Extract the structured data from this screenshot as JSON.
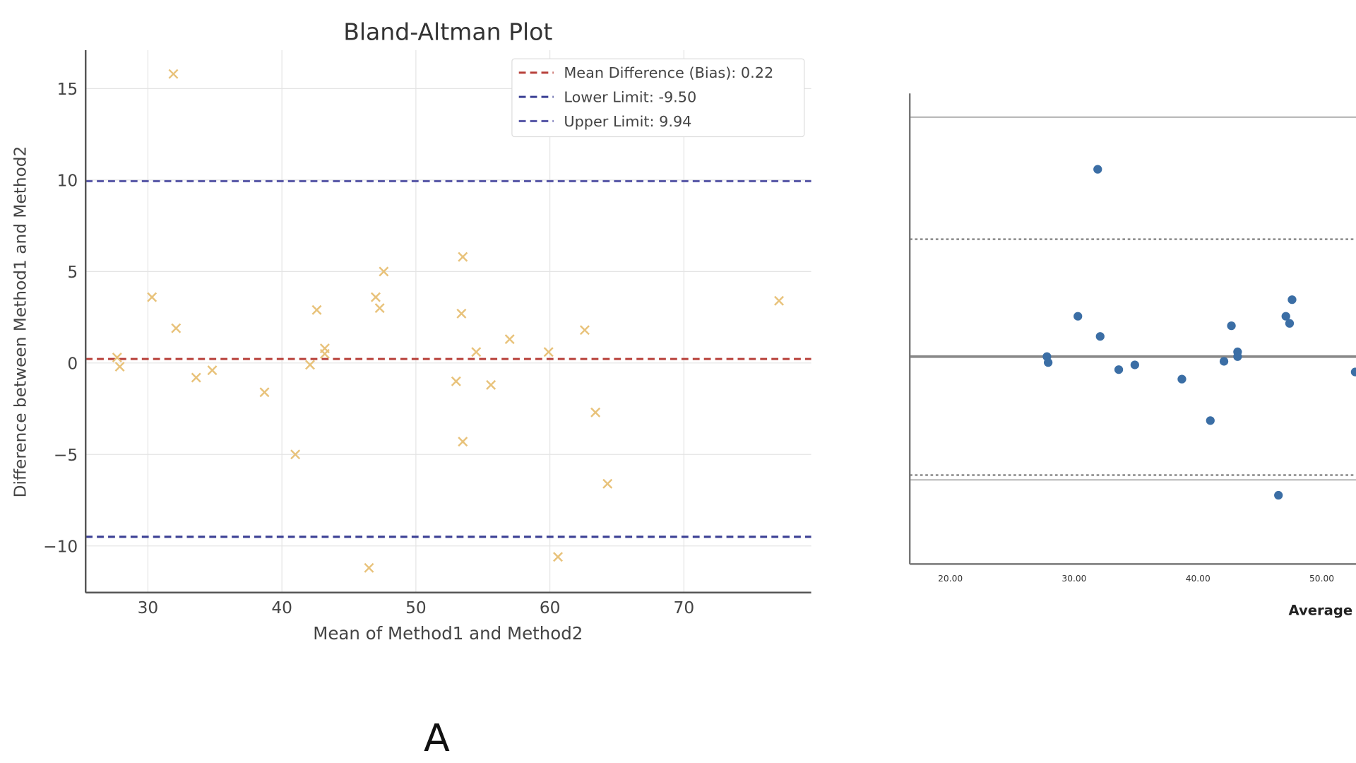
{
  "panel_label": "A",
  "chart_data": [
    {
      "type": "scatter",
      "title": "Bland-Altman Plot",
      "xlabel": "Mean of Method1 and Method2",
      "ylabel": "Difference between Method1 and Method2",
      "xlim": [
        25.35,
        79.5
      ],
      "ylim": [
        -12.55,
        17.1
      ],
      "xticks": [
        30,
        40,
        50,
        60,
        70
      ],
      "yticks": [
        15,
        10,
        5,
        0,
        -5,
        -10
      ],
      "ytick_labels": [
        "15",
        "10",
        "5",
        "0",
        "−5",
        "−10"
      ],
      "grid": true,
      "legend_position": "top-right",
      "marker": "x",
      "point_color": "#e8c27a",
      "points": [
        [
          31.9,
          15.8
        ],
        [
          30.3,
          3.6
        ],
        [
          32.1,
          1.9
        ],
        [
          27.7,
          0.3
        ],
        [
          27.9,
          -0.2
        ],
        [
          33.6,
          -0.8
        ],
        [
          34.8,
          -0.4
        ],
        [
          38.7,
          -1.6
        ],
        [
          41.0,
          -5.0
        ],
        [
          42.1,
          -0.1
        ],
        [
          42.6,
          2.9
        ],
        [
          43.2,
          0.8
        ],
        [
          43.2,
          0.5
        ],
        [
          46.5,
          -11.2
        ],
        [
          47.0,
          3.6
        ],
        [
          47.3,
          3.0
        ],
        [
          47.6,
          5.0
        ],
        [
          53.0,
          -1.0
        ],
        [
          53.5,
          5.8
        ],
        [
          53.4,
          2.7
        ],
        [
          53.5,
          -4.3
        ],
        [
          54.5,
          0.6
        ],
        [
          55.6,
          -1.2
        ],
        [
          57.0,
          1.3
        ],
        [
          59.9,
          0.6
        ],
        [
          60.6,
          -10.6
        ],
        [
          62.6,
          1.8
        ],
        [
          63.4,
          -2.7
        ],
        [
          64.3,
          -6.6
        ],
        [
          77.1,
          3.4
        ]
      ],
      "lines": [
        {
          "label": "Mean Difference (Bias): 0.22",
          "y": 0.22,
          "color": "#b8403a"
        },
        {
          "label": "Lower Limit: -9.50",
          "y": -9.5,
          "color": "#3a3f94"
        },
        {
          "label": "Upper Limit: 9.94",
          "y": 9.94,
          "color": "#5a5aa8"
        }
      ]
    },
    {
      "type": "scatter",
      "title": "",
      "xlabel": "Average",
      "ylabel": "",
      "xlim": [
        16.72,
        55.0
      ],
      "ylim": [
        -17.5,
        22.2
      ],
      "xticks": [
        20,
        30,
        40,
        50
      ],
      "xtick_labels": [
        "20.00",
        "30.00",
        "40.00",
        "50.00"
      ],
      "marker": "circle",
      "point_color": "#3b6ea5",
      "points": [
        [
          31.9,
          15.8
        ],
        [
          30.3,
          3.4
        ],
        [
          32.1,
          1.7
        ],
        [
          27.8,
          0.0
        ],
        [
          27.9,
          -0.5
        ],
        [
          33.6,
          -1.1
        ],
        [
          34.9,
          -0.7
        ],
        [
          38.7,
          -1.9
        ],
        [
          41.0,
          -5.4
        ],
        [
          42.1,
          -0.4
        ],
        [
          42.7,
          2.6
        ],
        [
          43.2,
          0.4
        ],
        [
          43.2,
          0.0
        ],
        [
          46.5,
          -11.7
        ],
        [
          47.1,
          3.4
        ],
        [
          47.4,
          2.8
        ],
        [
          47.6,
          4.8
        ],
        [
          52.7,
          -1.3
        ]
      ],
      "reference_lines": [
        {
          "y": 20.2,
          "style": "solid"
        },
        {
          "y": 9.9,
          "style": "dotted"
        },
        {
          "y": 0.0,
          "style": "solid-thick"
        },
        {
          "y": -10.0,
          "style": "dotted"
        },
        {
          "y": -10.4,
          "style": "solid"
        }
      ]
    }
  ]
}
